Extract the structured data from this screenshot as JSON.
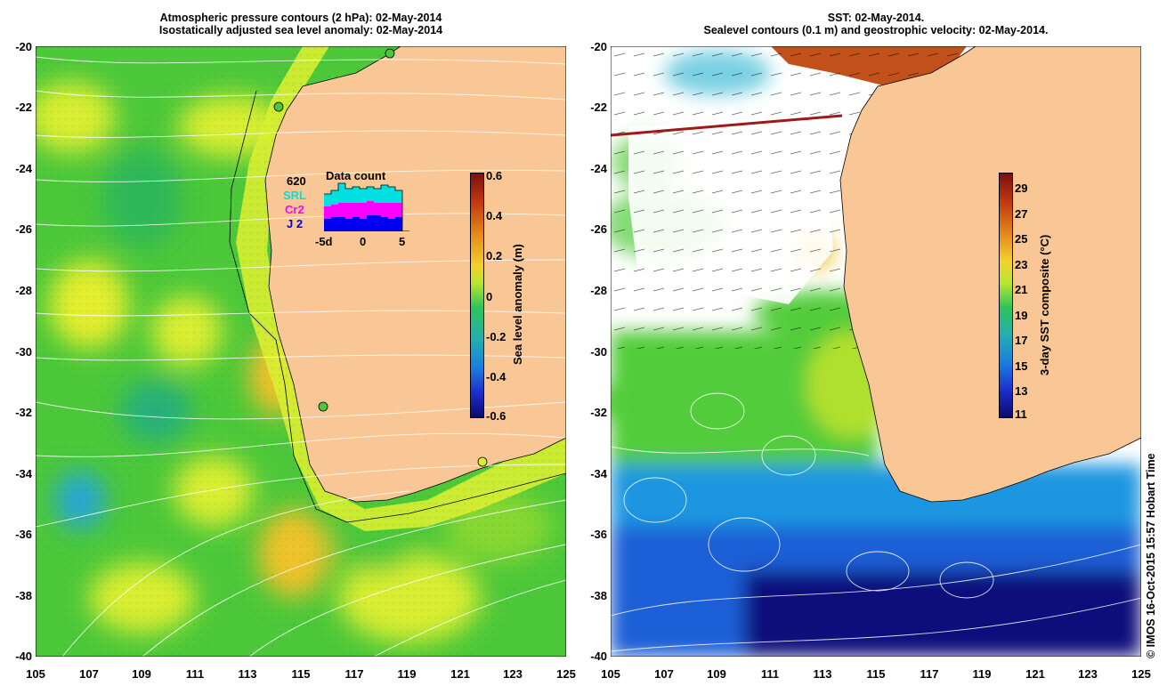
{
  "left_panel": {
    "title_line1": "Atmospheric pressure contours (2 hPa): 02-May-2014",
    "title_line2": "Isostatically adjusted sea level anomaly: 02-May-2014",
    "colorbar": {
      "label": "Sea level anomaly (m)",
      "ticks": [
        "0.6",
        "0.4",
        "0.2",
        "0",
        "-0.2",
        "-0.4",
        "-0.6"
      ],
      "range": [
        -0.6,
        0.6
      ]
    },
    "inset": {
      "title": "Data count",
      "legend": [
        {
          "label": "620",
          "color": "#000000"
        },
        {
          "label": "SRL",
          "color": "#00e0e0"
        },
        {
          "label": "Cr2",
          "color": "#ff00ff"
        },
        {
          "label": "J 2",
          "color": "#0000ee"
        }
      ],
      "x_ticks": [
        "-5d",
        "0",
        "5"
      ]
    }
  },
  "right_panel": {
    "title_line1": "SST: 02-May-2014.",
    "title_line2": "Sealevel contours (0.1 m) and geostrophic velocity: 02-May-2014.",
    "colorbar": {
      "label": "3-day SST composite (°C)",
      "ticks": [
        "29",
        "27",
        "25",
        "23",
        "21",
        "19",
        "17",
        "15",
        "13",
        "11"
      ],
      "range": [
        11,
        30
      ]
    }
  },
  "axes": {
    "lat_ticks": [
      "-20",
      "-22",
      "-24",
      "-26",
      "-28",
      "-30",
      "-32",
      "-34",
      "-36",
      "-38",
      "-40"
    ],
    "lon_ticks": [
      "105",
      "107",
      "109",
      "111",
      "113",
      "115",
      "117",
      "119",
      "121",
      "123",
      "125"
    ],
    "lat_range": [
      -40,
      -20
    ],
    "lon_range": [
      105,
      125
    ]
  },
  "credit": "© IMOS 16-Oct-2015 15:57 Hobart Time",
  "colors": {
    "land": "#f9c795",
    "ocean_green": "#4cc83a",
    "ocean_yellow": "#d9ee33",
    "sst_blue": "#1a5fd6",
    "sst_dark": "#0f0a7c"
  }
}
